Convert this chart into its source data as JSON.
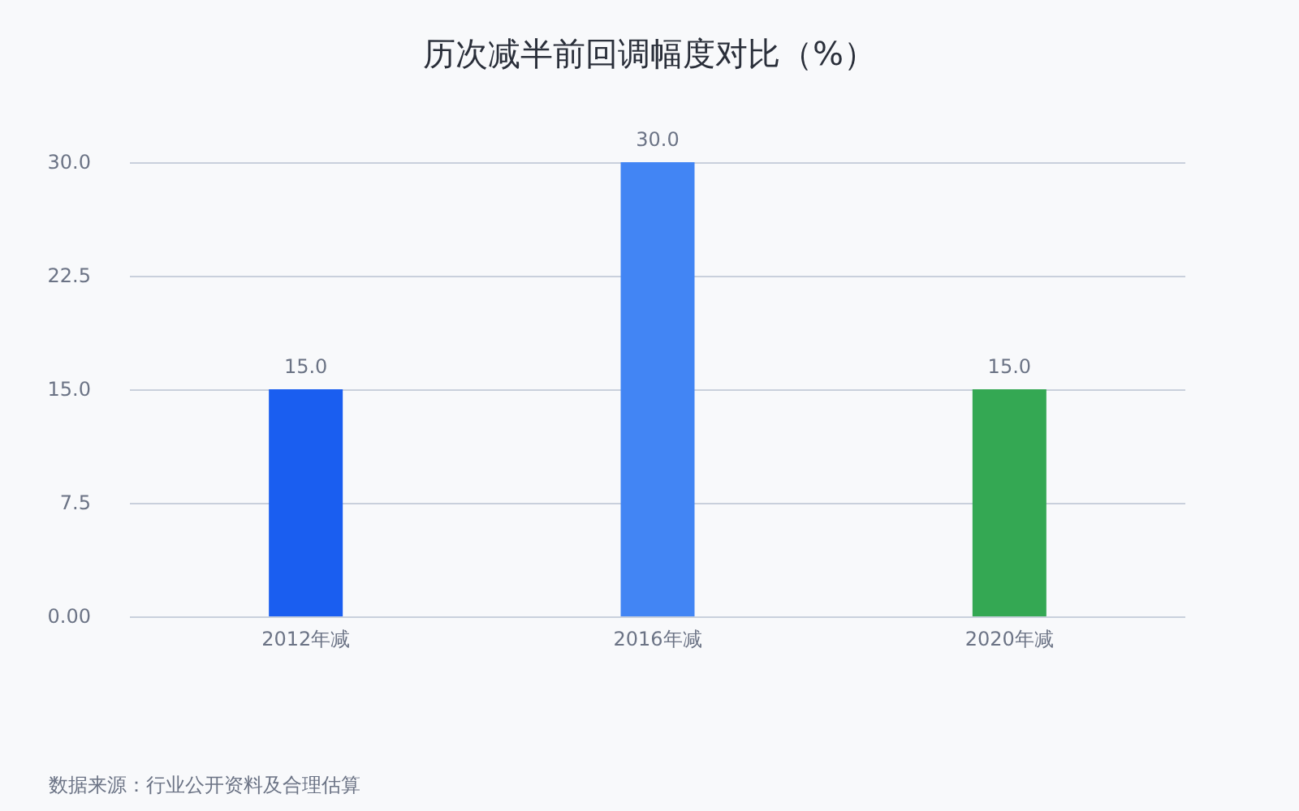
{
  "chart_data": {
    "type": "bar",
    "title": "历次减半前回调幅度对比（%）",
    "categories": [
      "2012年减",
      "2016年减",
      "2020年减"
    ],
    "values": [
      15,
      30,
      15
    ],
    "colors": [
      "#1a5ef0",
      "#4285f4",
      "#34a853"
    ],
    "value_labels": [
      "15.0",
      "30.0",
      "15.0"
    ],
    "ylim": [
      0,
      30
    ],
    "yticks": [
      {
        "value": 0,
        "label": "0.00"
      },
      7.5,
      {
        "value": 15,
        "label": "15.0"
      },
      22.5,
      {
        "value": 30,
        "label": "30.0"
      }
    ],
    "grid": "y",
    "annotations": [
      "数据来源：行业公开资料及合理估算"
    ]
  }
}
